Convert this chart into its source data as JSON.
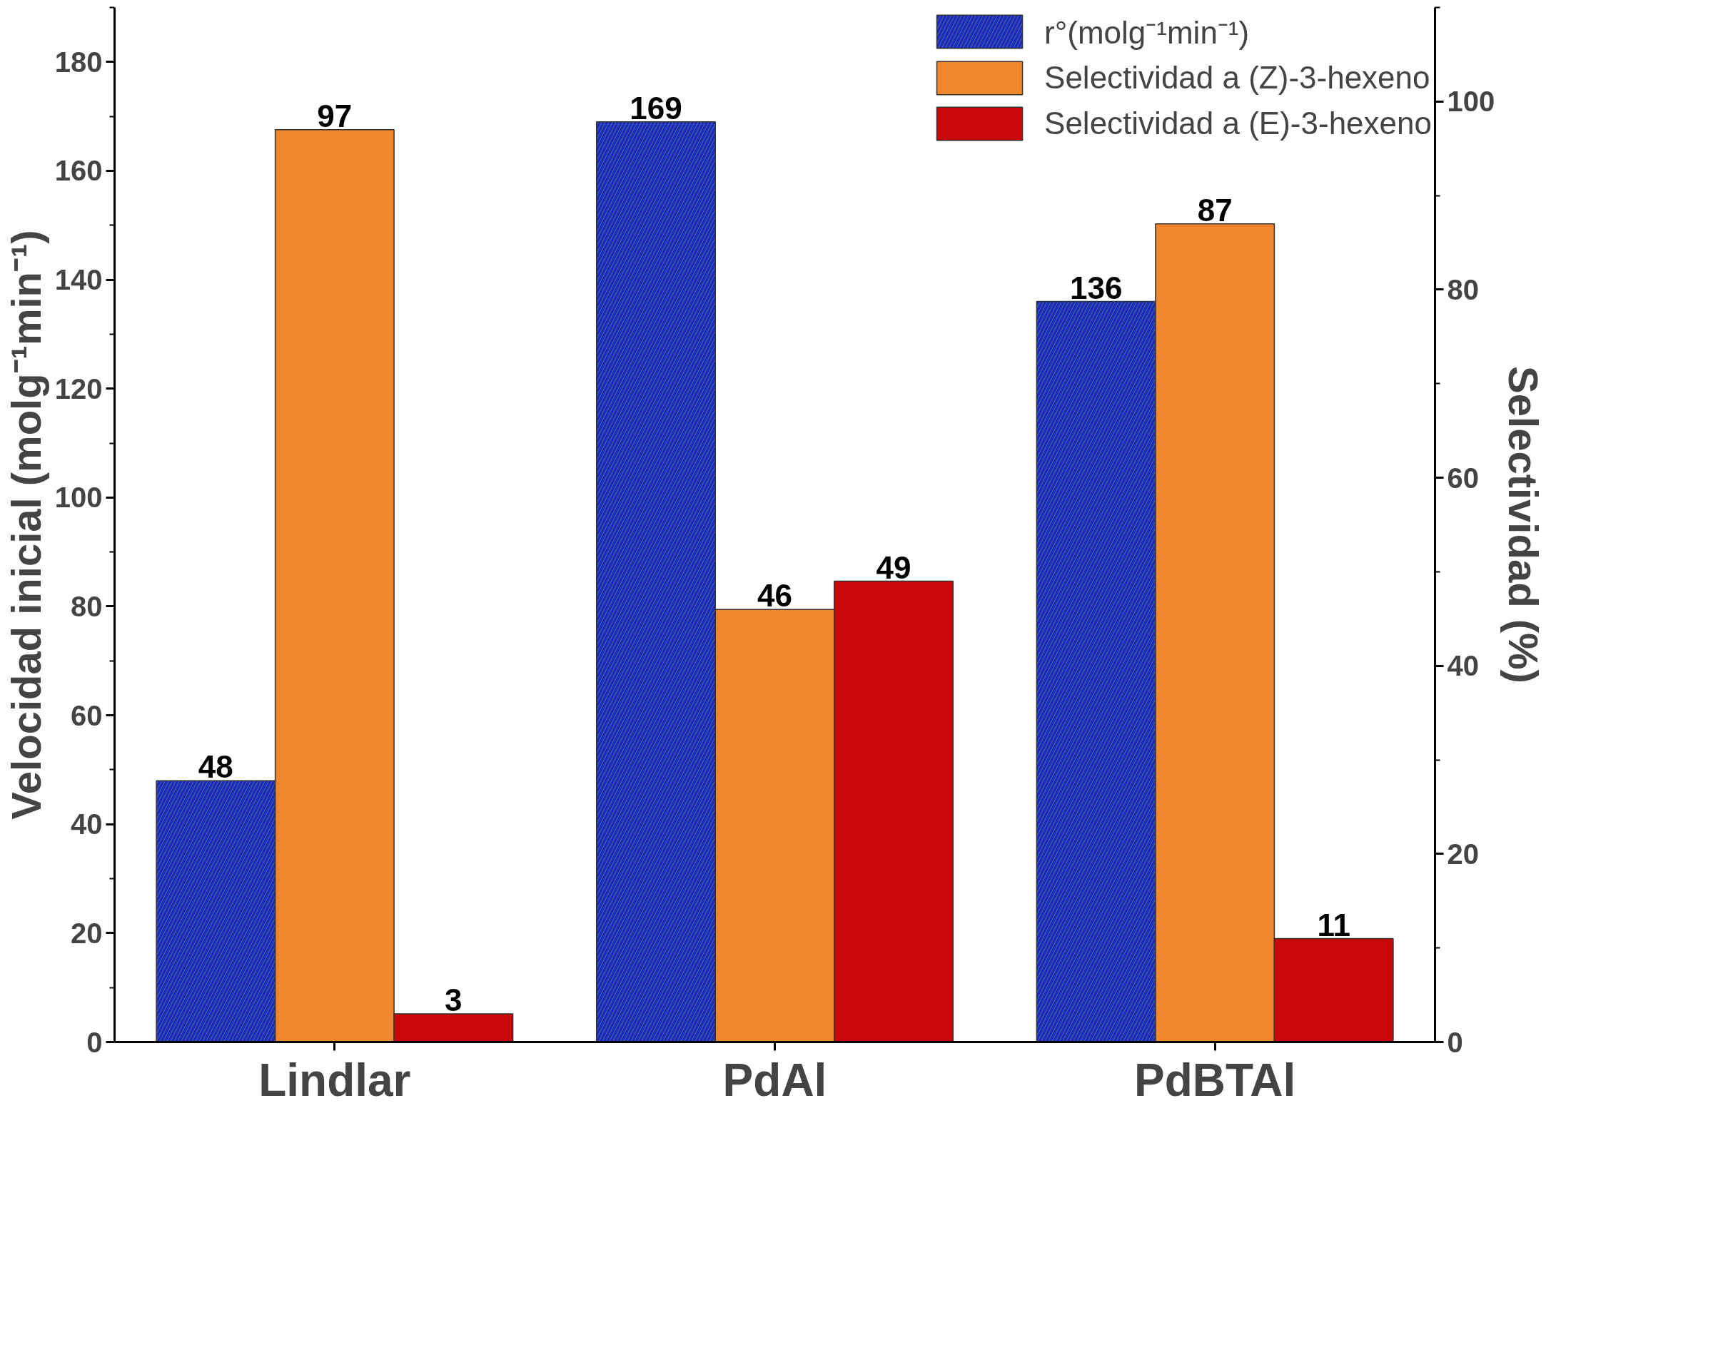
{
  "chart_data": {
    "type": "bar",
    "categories": [
      "Lindlar",
      "PdAl",
      "PdBTAl"
    ],
    "ylabel": "Velocidad inicial (molg⁻¹min⁻¹)",
    "y2label": "Selectividad (%)",
    "series": [
      {
        "name": "r°(molg⁻¹min⁻¹)",
        "color": "#2323c8",
        "values": [
          48,
          169,
          136
        ]
      },
      {
        "name": "Selectividad a (Z)-3-hexeno",
        "color": "#f0862e",
        "values": [
          97,
          46,
          87
        ],
        "axis": "y2"
      },
      {
        "name": "Selectividad a (E)-3-hexeno",
        "color": "#c80808",
        "values": [
          3,
          49,
          11
        ],
        "axis": "y2"
      }
    ],
    "ylim": [
      0,
      190
    ],
    "yticks": [
      0,
      20,
      40,
      60,
      80,
      100,
      120,
      140,
      160,
      180
    ],
    "y2lim": [
      0,
      110
    ],
    "y2ticks": [
      0,
      20,
      40,
      60,
      80,
      100
    ],
    "data_labels": true,
    "legend": "top right",
    "grid": false
  }
}
